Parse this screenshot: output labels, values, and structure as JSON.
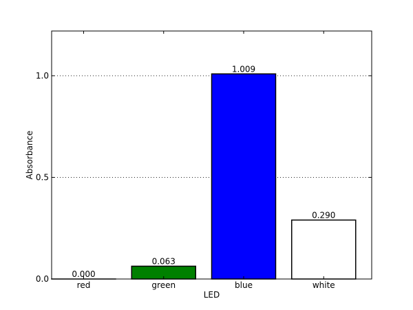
{
  "chart_data": {
    "type": "bar",
    "title": "",
    "xlabel": "LED",
    "ylabel": "Absorbance",
    "categories": [
      "red",
      "green",
      "blue",
      "white"
    ],
    "values": [
      0.0,
      0.063,
      1.009,
      0.29
    ],
    "data_labels": [
      "0.000",
      "0.063",
      "1.009",
      "0.290"
    ],
    "bar_colors": [
      "#ff0000",
      "#008000",
      "#0000ff",
      "#ffffff"
    ],
    "ylim": [
      0,
      1.22
    ],
    "y_ticks": [
      0.0,
      0.5,
      1.0
    ],
    "y_tick_labels": [
      "0.0",
      "0.5",
      "1.0"
    ],
    "grid": "y-dotted",
    "legend": "none"
  }
}
